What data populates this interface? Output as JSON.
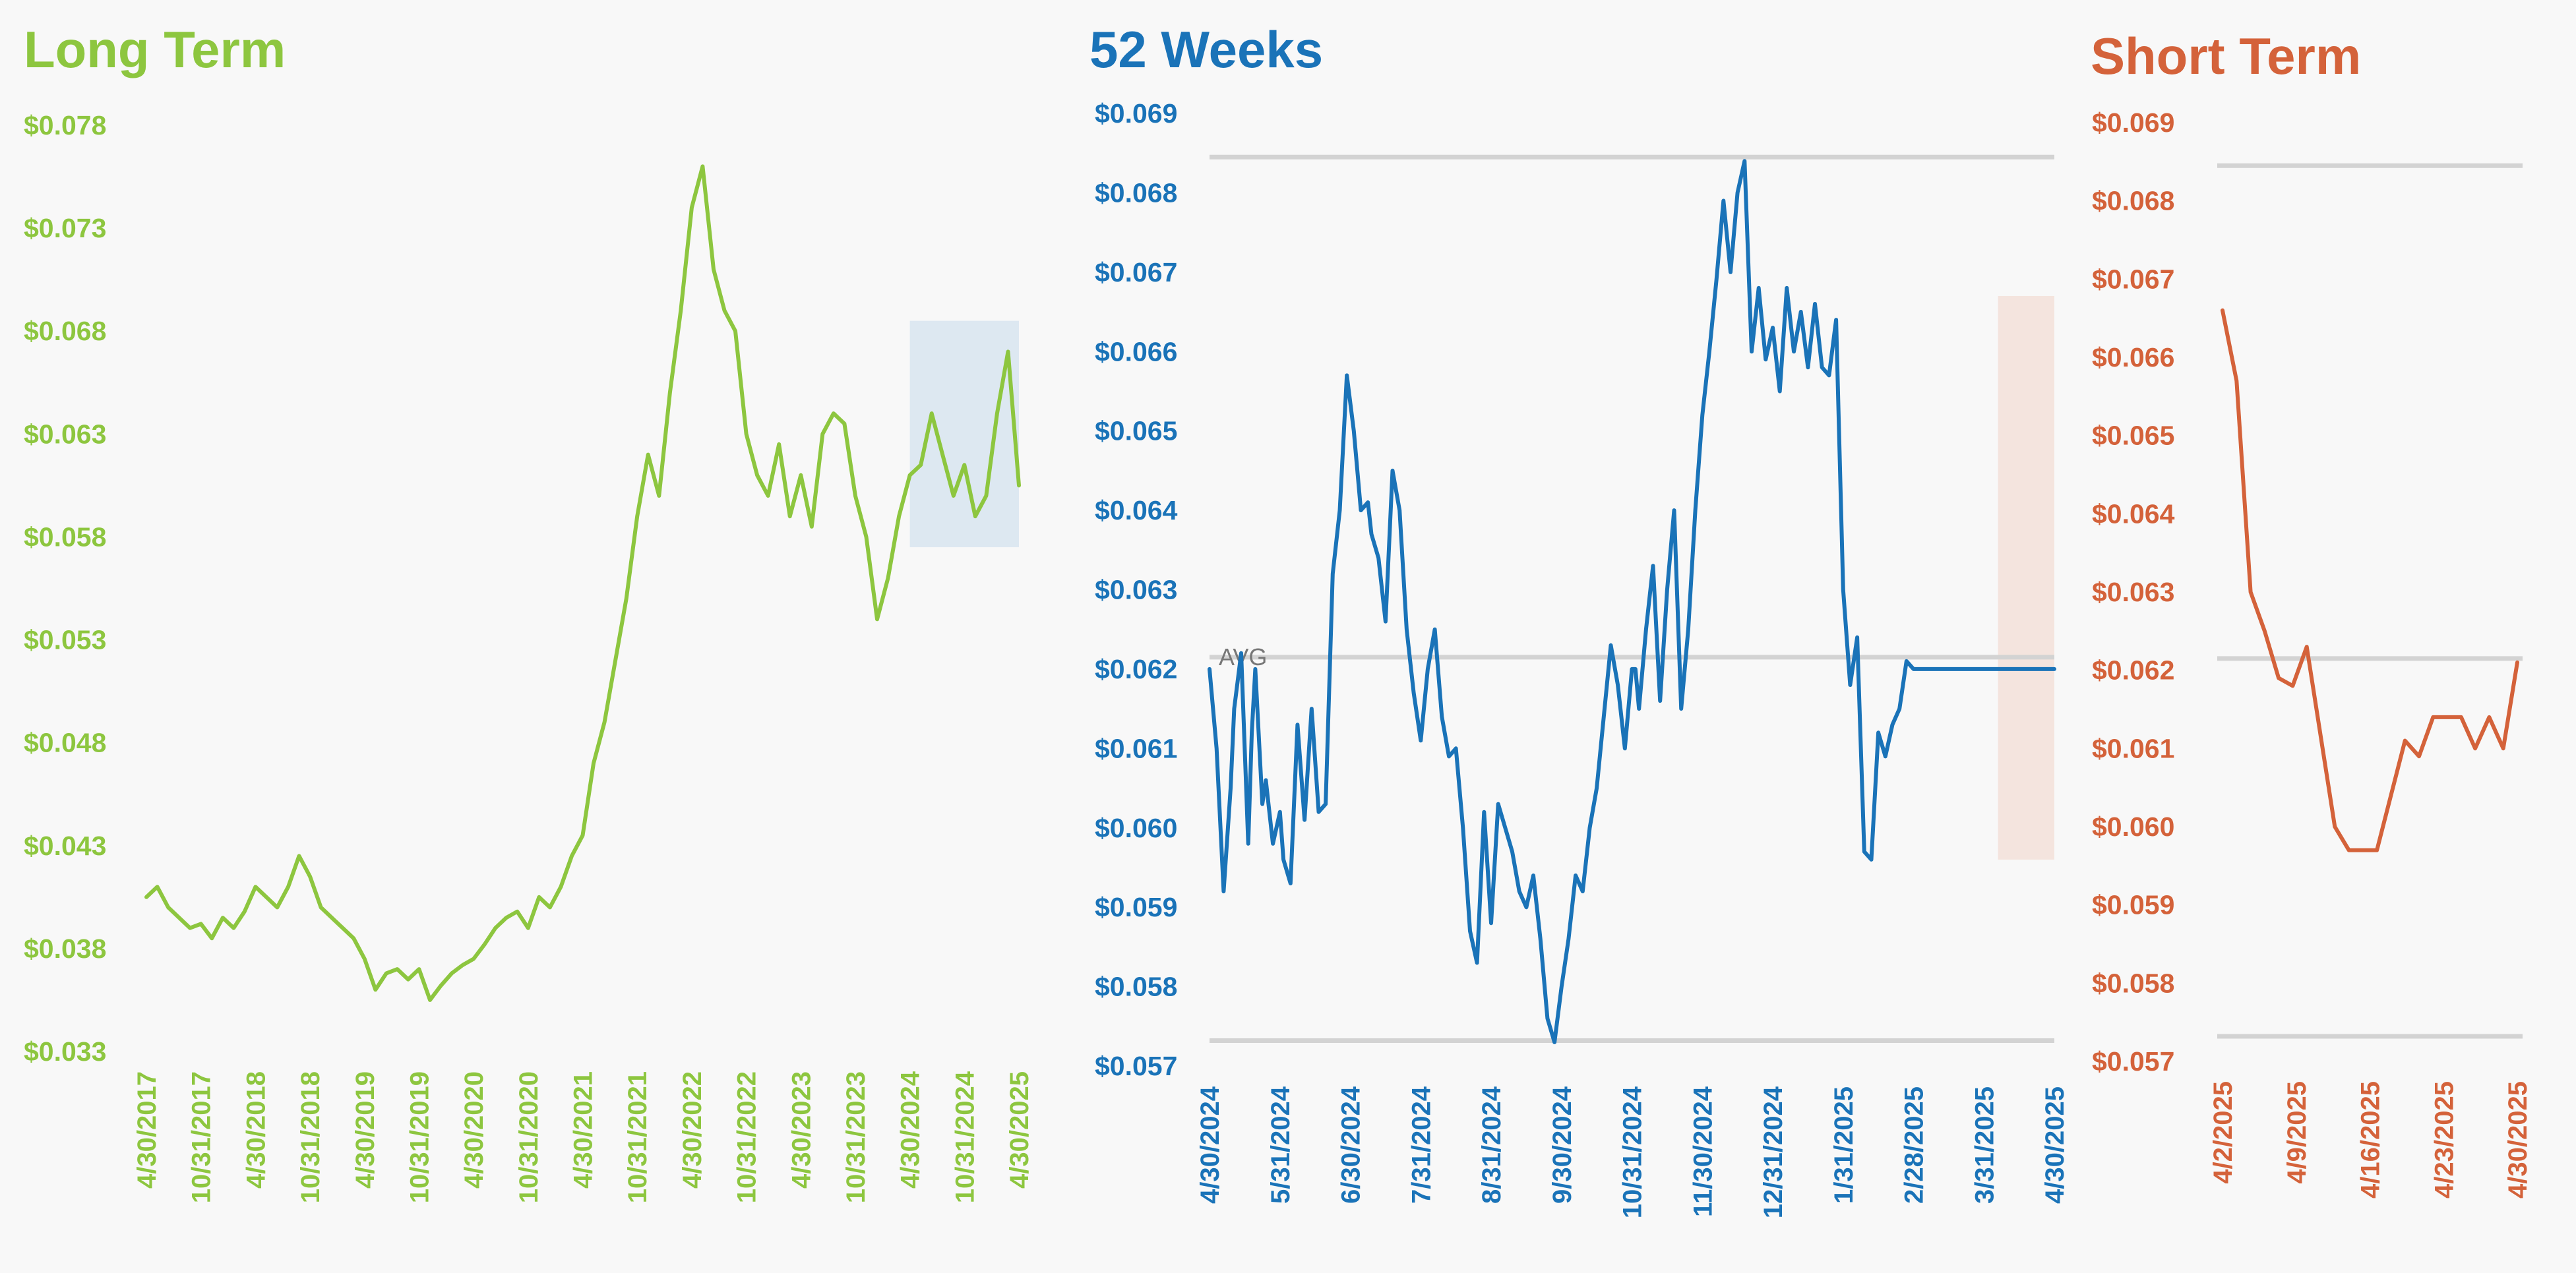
{
  "chart_data": [
    {
      "type": "line",
      "title": "Long Term",
      "color": "#8dc63f",
      "yticks": [
        "$0.078",
        "$0.073",
        "$0.068",
        "$0.063",
        "$0.058",
        "$0.053",
        "$0.048",
        "$0.043",
        "$0.038",
        "$0.033"
      ],
      "ylim": [
        0.033,
        0.078
      ],
      "xticks": [
        "4/30/2017",
        "10/31/2017",
        "4/30/2018",
        "10/31/2018",
        "4/30/2019",
        "10/31/2019",
        "4/30/2020",
        "10/31/2020",
        "4/30/2021",
        "10/31/2021",
        "4/30/2022",
        "10/31/2022",
        "4/30/2023",
        "10/31/2023",
        "4/30/2024",
        "10/31/2024",
        "4/30/2025"
      ],
      "highlight": {
        "x": [
          14.0,
          16.0
        ],
        "y": [
          0.0575,
          0.0685
        ],
        "color": "#dde8f1"
      },
      "series": [
        {
          "x": [
            0,
            0.2,
            0.4,
            0.6,
            0.8,
            1.0,
            1.2,
            1.4,
            1.6,
            1.8,
            2.0,
            2.2,
            2.4,
            2.6,
            2.8,
            3.0,
            3.2,
            3.4,
            3.6,
            3.8,
            4.0,
            4.2,
            4.4,
            4.6,
            4.8,
            5.0,
            5.2,
            5.4,
            5.6,
            5.8,
            6.0,
            6.2,
            6.4,
            6.6,
            6.8,
            7.0,
            7.2,
            7.4,
            7.6,
            7.8,
            8.0,
            8.2,
            8.4,
            8.6,
            8.8,
            9.0,
            9.2,
            9.4,
            9.6,
            9.8,
            10.0,
            10.2,
            10.4,
            10.6,
            10.8,
            11.0,
            11.2,
            11.4,
            11.6,
            11.8,
            12.0,
            12.2,
            12.4,
            12.6,
            12.8,
            13.0,
            13.2,
            13.4,
            13.6,
            13.8,
            14.0,
            14.2,
            14.4,
            14.6,
            14.8,
            15.0,
            15.2,
            15.4,
            15.6,
            15.8,
            16.0
          ],
          "values": [
            0.0405,
            0.041,
            0.04,
            0.0395,
            0.039,
            0.0392,
            0.0385,
            0.0395,
            0.039,
            0.0398,
            0.041,
            0.0405,
            0.04,
            0.041,
            0.0425,
            0.0415,
            0.04,
            0.0395,
            0.039,
            0.0385,
            0.0375,
            0.036,
            0.0368,
            0.037,
            0.0365,
            0.037,
            0.0355,
            0.0362,
            0.0368,
            0.0372,
            0.0375,
            0.0382,
            0.039,
            0.0395,
            0.0398,
            0.039,
            0.0405,
            0.04,
            0.041,
            0.0425,
            0.0435,
            0.047,
            0.049,
            0.052,
            0.055,
            0.059,
            0.062,
            0.06,
            0.065,
            0.069,
            0.074,
            0.076,
            0.071,
            0.069,
            0.068,
            0.063,
            0.061,
            0.06,
            0.0625,
            0.059,
            0.061,
            0.0585,
            0.063,
            0.064,
            0.0635,
            0.06,
            0.058,
            0.054,
            0.056,
            0.059,
            0.061,
            0.0615,
            0.064,
            0.062,
            0.06,
            0.0615,
            0.059,
            0.06,
            0.064,
            0.067,
            0.0605
          ]
        }
      ]
    },
    {
      "type": "line",
      "title": "52 Weeks",
      "color": "#1a73b8",
      "yticks": [
        "$0.069",
        "$0.068",
        "$0.067",
        "$0.066",
        "$0.065",
        "$0.064",
        "$0.063",
        "$0.062",
        "$0.061",
        "$0.060",
        "$0.059",
        "$0.058",
        "$0.057"
      ],
      "ylim": [
        0.057,
        0.069
      ],
      "xticks": [
        "4/30/2024",
        "5/31/2024",
        "6/30/2024",
        "7/31/2024",
        "8/31/2024",
        "9/30/2024",
        "10/31/2024",
        "11/30/2024",
        "12/31/2024",
        "1/31/2025",
        "2/28/2025",
        "3/31/2025",
        "4/30/2025"
      ],
      "reference_lines": {
        "high": 0.06845,
        "avg": 0.06215,
        "low": 0.05732
      },
      "avg_label": "AVG",
      "highlight": {
        "x": [
          11.2,
          12.0
        ],
        "y": [
          0.0596,
          0.0667
        ],
        "color": "#f4e4de"
      },
      "series": [
        {
          "x": [
            0,
            0.1,
            0.2,
            0.3,
            0.35,
            0.45,
            0.55,
            0.6,
            0.65,
            0.75,
            0.8,
            0.9,
            1.0,
            1.05,
            1.15,
            1.25,
            1.35,
            1.45,
            1.55,
            1.65,
            1.75,
            1.85,
            1.95,
            2.05,
            2.15,
            2.25,
            2.3,
            2.4,
            2.5,
            2.6,
            2.7,
            2.8,
            2.9,
            3.0,
            3.1,
            3.2,
            3.3,
            3.4,
            3.5,
            3.6,
            3.7,
            3.8,
            3.9,
            4.0,
            4.1,
            4.2,
            4.3,
            4.4,
            4.5,
            4.6,
            4.7,
            4.8,
            4.9,
            5.0,
            5.1,
            5.2,
            5.3,
            5.4,
            5.5,
            5.6,
            5.7,
            5.8,
            5.9,
            6.0,
            6.05,
            6.1,
            6.2,
            6.3,
            6.4,
            6.5,
            6.6,
            6.7,
            6.8,
            6.9,
            7.0,
            7.1,
            7.2,
            7.3,
            7.4,
            7.5,
            7.6,
            7.7,
            7.8,
            7.9,
            8.0,
            8.1,
            8.2,
            8.3,
            8.4,
            8.5,
            8.6,
            8.7,
            8.8,
            8.9,
            9.0,
            9.1,
            9.2,
            9.3,
            9.4,
            9.5,
            9.6,
            9.7,
            9.8,
            9.9,
            10.0,
            10.1,
            10.2,
            10.3,
            10.4,
            10.5,
            10.6,
            10.7,
            10.8,
            10.9,
            11.0,
            11.1,
            11.2,
            11.3,
            11.4,
            11.5,
            11.6,
            11.7,
            11.8,
            11.9,
            12.0
          ],
          "values": [
            0.062,
            0.061,
            0.0592,
            0.0605,
            0.0615,
            0.0622,
            0.0598,
            0.0612,
            0.062,
            0.0603,
            0.0606,
            0.0598,
            0.0602,
            0.0596,
            0.0593,
            0.0613,
            0.0601,
            0.0615,
            0.0602,
            0.0603,
            0.0632,
            0.064,
            0.0657,
            0.065,
            0.064,
            0.0641,
            0.0637,
            0.0634,
            0.0626,
            0.0645,
            0.064,
            0.0625,
            0.0617,
            0.0611,
            0.062,
            0.0625,
            0.0614,
            0.0609,
            0.061,
            0.06,
            0.0587,
            0.0583,
            0.0602,
            0.0588,
            0.0603,
            0.06,
            0.0597,
            0.0592,
            0.059,
            0.0594,
            0.0586,
            0.0576,
            0.0573,
            0.058,
            0.0586,
            0.0594,
            0.0592,
            0.06,
            0.0605,
            0.0614,
            0.0623,
            0.0618,
            0.061,
            0.062,
            0.062,
            0.0615,
            0.0625,
            0.0633,
            0.0616,
            0.063,
            0.064,
            0.0615,
            0.0625,
            0.064,
            0.0652,
            0.066,
            0.0669,
            0.0679,
            0.067,
            0.068,
            0.0684,
            0.066,
            0.0668,
            0.0659,
            0.0663,
            0.0655,
            0.0668,
            0.066,
            0.0665,
            0.0658,
            0.0666,
            0.0658,
            0.0657,
            0.0664,
            0.063,
            0.0618,
            0.0624,
            0.0597,
            0.0596,
            0.0612,
            0.0609,
            0.0613,
            0.0615,
            0.0621,
            0.062,
            0.062,
            0.062,
            0.062,
            0.062,
            0.062,
            0.062,
            0.062,
            0.062,
            0.062,
            0.062,
            0.062,
            0.062,
            0.062,
            0.062,
            0.062,
            0.062,
            0.062,
            0.062,
            0.062,
            0.062
          ]
        }
      ]
    },
    {
      "type": "line",
      "title": "Short Term",
      "color": "#d4623a",
      "yticks": [
        "$0.069",
        "$0.068",
        "$0.067",
        "$0.066",
        "$0.065",
        "$0.064",
        "$0.063",
        "$0.062",
        "$0.061",
        "$0.060",
        "$0.059",
        "$0.058",
        "$0.057"
      ],
      "ylim": [
        0.057,
        0.069
      ],
      "xticks": [
        "4/2/2025",
        "4/9/2025",
        "4/16/2025",
        "4/23/2025",
        "4/30/2025"
      ],
      "reference_lines": {
        "high": 0.06845,
        "avg": 0.06215,
        "low": 0.05732
      },
      "series": [
        {
          "x": [
            0,
            1,
            2,
            3,
            4,
            5,
            6,
            8,
            9,
            10,
            11,
            12,
            13,
            14,
            15,
            16,
            17,
            18,
            19,
            20,
            21
          ],
          "values": [
            0.0666,
            0.0657,
            0.063,
            0.0625,
            0.0619,
            0.0618,
            0.0623,
            0.06,
            0.0597,
            0.0597,
            0.0597,
            0.0604,
            0.0611,
            0.0609,
            0.0614,
            0.0614,
            0.0614,
            0.061,
            0.0614,
            0.061,
            0.0621
          ]
        }
      ]
    }
  ]
}
